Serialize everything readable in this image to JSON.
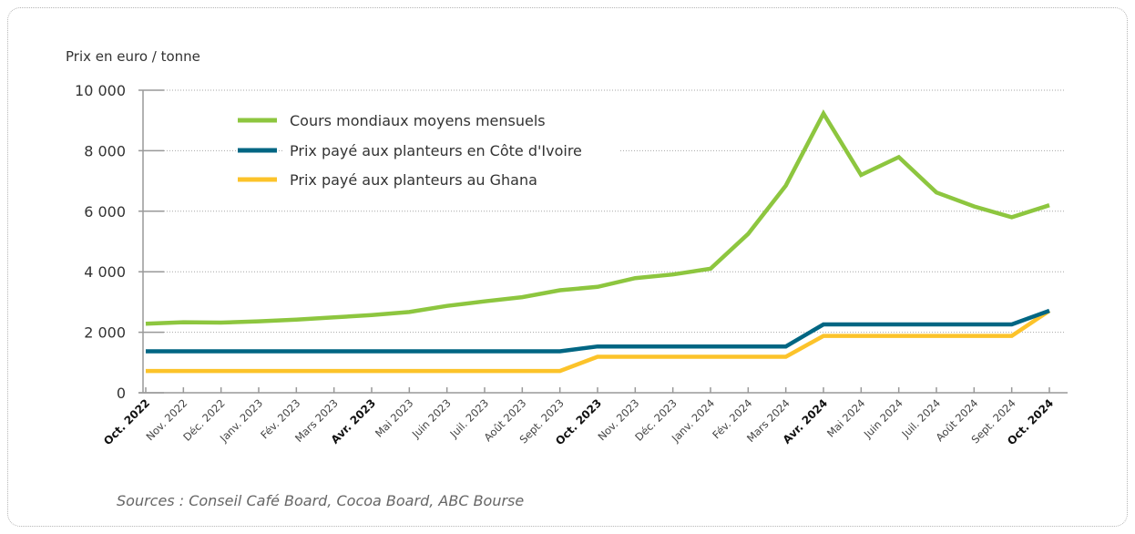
{
  "chart_data": {
    "type": "line",
    "ylabel": "Prix en euro / tonne",
    "source": "Sources : Conseil Café Board, Cocoa Board, ABC Bourse",
    "ylim": [
      0,
      10000
    ],
    "yticks": [
      {
        "value": 0,
        "label": "0"
      },
      {
        "value": 2000,
        "label": "2 000"
      },
      {
        "value": 4000,
        "label": "4 000"
      },
      {
        "value": 6000,
        "label": "6 000"
      },
      {
        "value": 8000,
        "label": "8 000"
      },
      {
        "value": 10000,
        "label": "10 000"
      }
    ],
    "grid": true,
    "legend_position": "top-left",
    "categories": [
      "Oct. 2022",
      "Nov. 2022",
      "Déc. 2022",
      "Janv. 2023",
      "Fév. 2023",
      "Mars 2023",
      "Avr. 2023",
      "Mai 2023",
      "Juin 2023",
      "Juil. 2023",
      "Août 2023",
      "Sept. 2023",
      "Oct. 2023",
      "Nov. 2023",
      "Déc. 2023",
      "Janv. 2024",
      "Fév. 2024",
      "Mars 2024",
      "Avr. 2024",
      "Mai 2024",
      "Juin 2024",
      "Juil. 2024",
      "Août 2024",
      "Sept. 2024",
      "Oct. 2024"
    ],
    "bold_categories": [
      "Oct. 2022",
      "Avr. 2023",
      "Oct. 2023",
      "Avr. 2024",
      "Oct. 2024"
    ],
    "series": [
      {
        "name": "Cours mondiaux moyens mensuels",
        "color": "#8dc63f",
        "values": [
          2280,
          2330,
          2320,
          2360,
          2420,
          2490,
          2570,
          2670,
          2870,
          3020,
          3160,
          3390,
          3500,
          3790,
          3910,
          4100,
          5250,
          6850,
          9230,
          7200,
          7790,
          6620,
          6160,
          5800,
          6200
        ]
      },
      {
        "name": "Prix payé aux planteurs en Côte d'Ivoire",
        "color": "#006683",
        "values": [
          1370,
          1370,
          1370,
          1370,
          1370,
          1370,
          1370,
          1370,
          1370,
          1370,
          1370,
          1370,
          1530,
          1530,
          1530,
          1530,
          1530,
          1530,
          2260,
          2260,
          2260,
          2260,
          2260,
          2260,
          2710
        ]
      },
      {
        "name": "Prix payé aux planteurs au Ghana",
        "color": "#fcc32a",
        "values": [
          720,
          720,
          720,
          720,
          720,
          720,
          720,
          720,
          720,
          720,
          720,
          720,
          1190,
          1190,
          1190,
          1190,
          1190,
          1190,
          1880,
          1880,
          1880,
          1880,
          1880,
          1880,
          2710
        ]
      }
    ]
  }
}
